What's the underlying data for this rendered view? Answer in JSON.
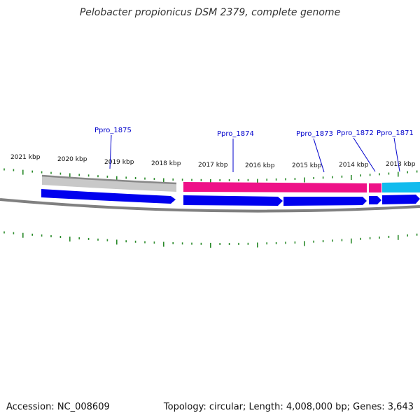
{
  "title": "Pelobacter propionicus DSM 2379, complete genome",
  "footer": {
    "accession": "Accession: NC_008609",
    "summary": "Topology: circular; Length: 4,008,000 bp; Genes: 3,643"
  },
  "colors": {
    "cds": "#0000ee",
    "feature_pink": "#ee1188",
    "feature_cyan": "#11bbee",
    "feature_gray": "#c8c8c8",
    "tick": "#2a8a2a",
    "label": "#0000cc"
  },
  "kbp_labels": [
    "2021 kbp",
    "2020 kbp",
    "2019 kbp",
    "2018 kbp",
    "2017 kbp",
    "2016 kbp",
    "2015 kbp",
    "2014 kbp",
    "2013 kbp"
  ],
  "gene_labels": [
    "Ppro_1875",
    "Ppro_1874",
    "Ppro_1873",
    "Ppro_1872",
    "Ppro_1871"
  ]
}
